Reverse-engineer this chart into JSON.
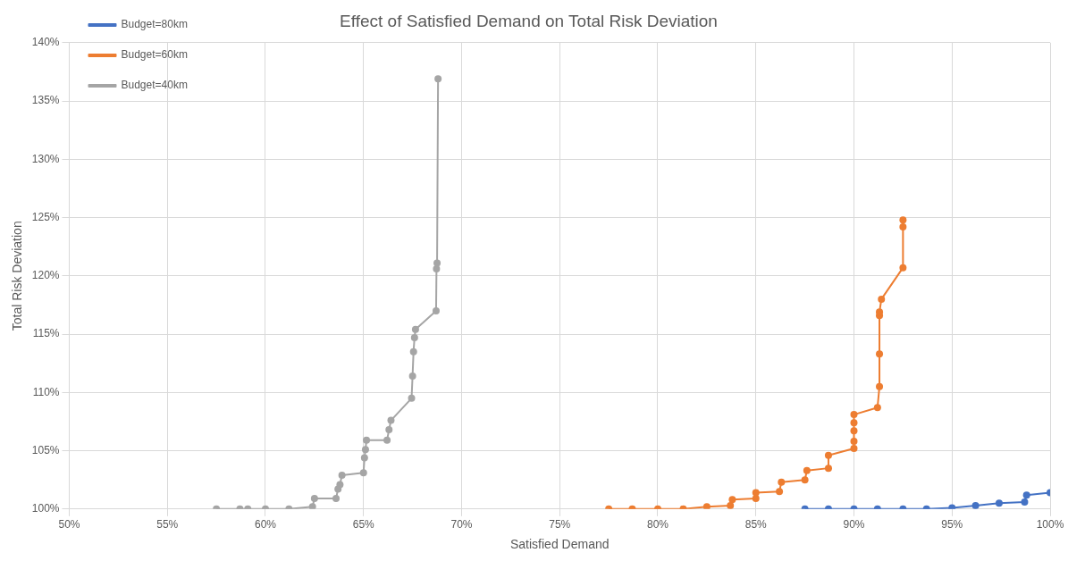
{
  "chart_data": {
    "type": "line",
    "title": "Effect of Satisfied Demand on Total Risk Deviation",
    "xlabel": "Satisfied Demand",
    "ylabel": "Total Risk Deviation",
    "xlim": [
      50,
      100
    ],
    "xticks": [
      {
        "value": 50,
        "label": "50%"
      },
      {
        "value": 55,
        "label": "55%"
      },
      {
        "value": 60,
        "label": "60%"
      },
      {
        "value": 65,
        "label": "65%"
      },
      {
        "value": 70,
        "label": "70%"
      },
      {
        "value": 75,
        "label": "75%"
      },
      {
        "value": 80,
        "label": "80%"
      },
      {
        "value": 85,
        "label": "85%"
      },
      {
        "value": 90,
        "label": "90%"
      },
      {
        "value": 95,
        "label": "95%"
      },
      {
        "value": 100,
        "label": "100%"
      }
    ],
    "ylim": [
      100,
      140
    ],
    "yticks": [
      {
        "value": 100,
        "label": "100%"
      },
      {
        "value": 105,
        "label": "105%"
      },
      {
        "value": 110,
        "label": "110%"
      },
      {
        "value": 115,
        "label": "115%"
      },
      {
        "value": 120,
        "label": "120%"
      },
      {
        "value": 125,
        "label": "125%"
      },
      {
        "value": 130,
        "label": "130%"
      },
      {
        "value": 135,
        "label": "135%"
      },
      {
        "value": 140,
        "label": "140%"
      }
    ],
    "grid": true,
    "legend": "top left",
    "marker": "circle",
    "line_style": "solid",
    "series": [
      {
        "name": "Budget=80km",
        "color": "#4472c4",
        "x": [
          87.5,
          88.7,
          90,
          91.2,
          92.5,
          93.7,
          95,
          96.2,
          97.4,
          98.7,
          98.8,
          100
        ],
        "values": [
          100,
          100,
          100,
          100,
          100,
          100,
          100.1,
          100.3,
          100.5,
          100.6,
          101.2,
          101.4
        ]
      },
      {
        "name": "Budget=60km",
        "color": "#ed7d31",
        "x": [
          77.5,
          78.7,
          80,
          81.3,
          82.5,
          83.7,
          83.8,
          85,
          85,
          86.2,
          86.3,
          87.5,
          87.6,
          88.7,
          88.7,
          90,
          90,
          90,
          90,
          90,
          91.2,
          91.3,
          91.3,
          91.3,
          91.3,
          91.4,
          92.5,
          92.5,
          92.5
        ],
        "values": [
          100,
          100,
          100,
          100,
          100.2,
          100.3,
          100.8,
          100.9,
          101.4,
          101.5,
          102.3,
          102.5,
          103.3,
          103.5,
          104.6,
          105.2,
          105.8,
          106.7,
          107.4,
          108.1,
          108.7,
          110.5,
          113.3,
          116.6,
          116.9,
          118,
          120.7,
          124.2,
          124.8
        ]
      },
      {
        "name": "Budget=40km",
        "color": "#a5a5a5",
        "x": [
          57.5,
          58.7,
          59.1,
          60,
          61.2,
          62.4,
          62.5,
          63.6,
          63.7,
          63.8,
          63.9,
          65,
          65.05,
          65.1,
          65.15,
          66.2,
          66.3,
          66.4,
          67.45,
          67.5,
          67.55,
          67.6,
          67.65,
          68.7,
          68.72,
          68.75,
          68.8
        ],
        "values": [
          100,
          100,
          100,
          100,
          100,
          100.2,
          100.9,
          100.9,
          101.7,
          102.1,
          102.9,
          103.1,
          104.4,
          105.1,
          105.9,
          105.9,
          106.8,
          107.6,
          109.5,
          111.4,
          113.5,
          114.7,
          115.4,
          117,
          120.6,
          121.1,
          136.9
        ]
      }
    ]
  }
}
